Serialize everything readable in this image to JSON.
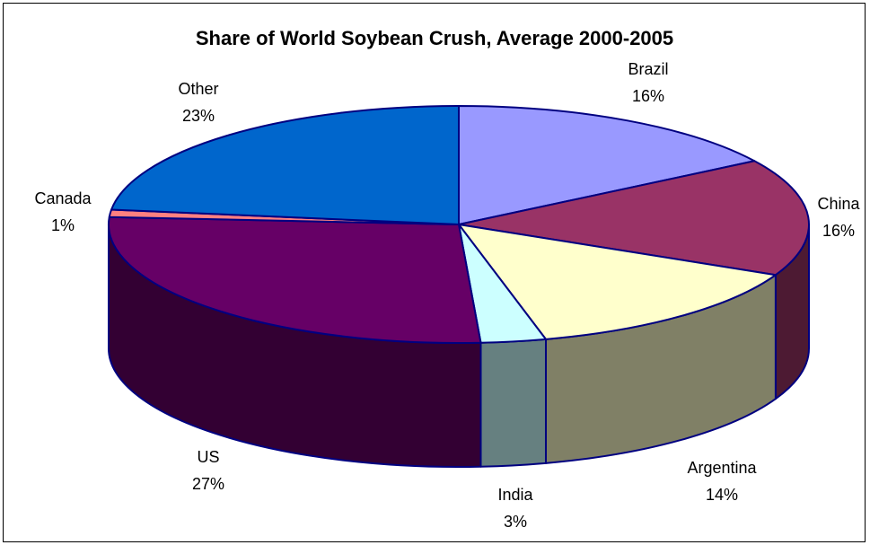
{
  "chart_data": {
    "type": "pie",
    "style": "3d",
    "title": "Share of World Soybean Crush, Average 2000-2005",
    "slices": [
      {
        "label": "Brazil",
        "value": 16,
        "value_label": "16%",
        "top_color": "#9999FF",
        "side_color": "#7A7ACC"
      },
      {
        "label": "China",
        "value": 16,
        "value_label": "16%",
        "top_color": "#993366",
        "side_color": "#4D1A33"
      },
      {
        "label": "Argentina",
        "value": 14,
        "value_label": "14%",
        "top_color": "#FFFFCC",
        "side_color": "#808066"
      },
      {
        "label": "India",
        "value": 3,
        "value_label": "3%",
        "top_color": "#CCFFFF",
        "side_color": "#668080"
      },
      {
        "label": "US",
        "value": 27,
        "value_label": "27%",
        "top_color": "#660066",
        "side_color": "#330033"
      },
      {
        "label": "Canada",
        "value": 1,
        "value_label": "1%",
        "top_color": "#FF8080",
        "side_color": "#804040"
      },
      {
        "label": "Other",
        "value": 23,
        "value_label": "23%",
        "top_color": "#0066CC",
        "side_color": "#003366"
      }
    ],
    "edge_color": "#000080",
    "legend": "none"
  }
}
